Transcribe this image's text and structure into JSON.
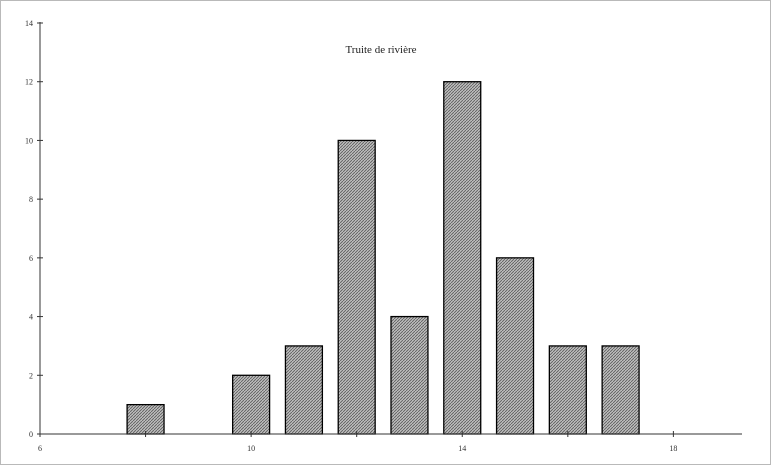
{
  "chart_data": {
    "type": "bar",
    "title": "Truite de rivière",
    "xlabel": "",
    "ylabel": "",
    "x": [
      8,
      10,
      11,
      12,
      13,
      14,
      15,
      16,
      17
    ],
    "values": [
      1,
      2,
      3,
      10,
      4,
      12,
      6,
      3,
      3
    ],
    "bar_width": 0.7,
    "xlim": [
      6,
      19.3
    ],
    "ylim": [
      0,
      14
    ],
    "x_ticks": [
      6,
      10,
      14,
      18
    ],
    "y_ticks": [
      0,
      2,
      4,
      6,
      8,
      10,
      12,
      14
    ],
    "x_tick_labels": [
      "6",
      "10",
      "14",
      "18"
    ],
    "y_tick_labels": [
      "0",
      "2",
      "4",
      "6",
      "8",
      "10",
      "12",
      "14"
    ],
    "grid": false,
    "legend": "none",
    "colors": {
      "bar_fill": "#a8a8a8",
      "bar_stroke": "#000000",
      "axis": "#333333"
    }
  }
}
